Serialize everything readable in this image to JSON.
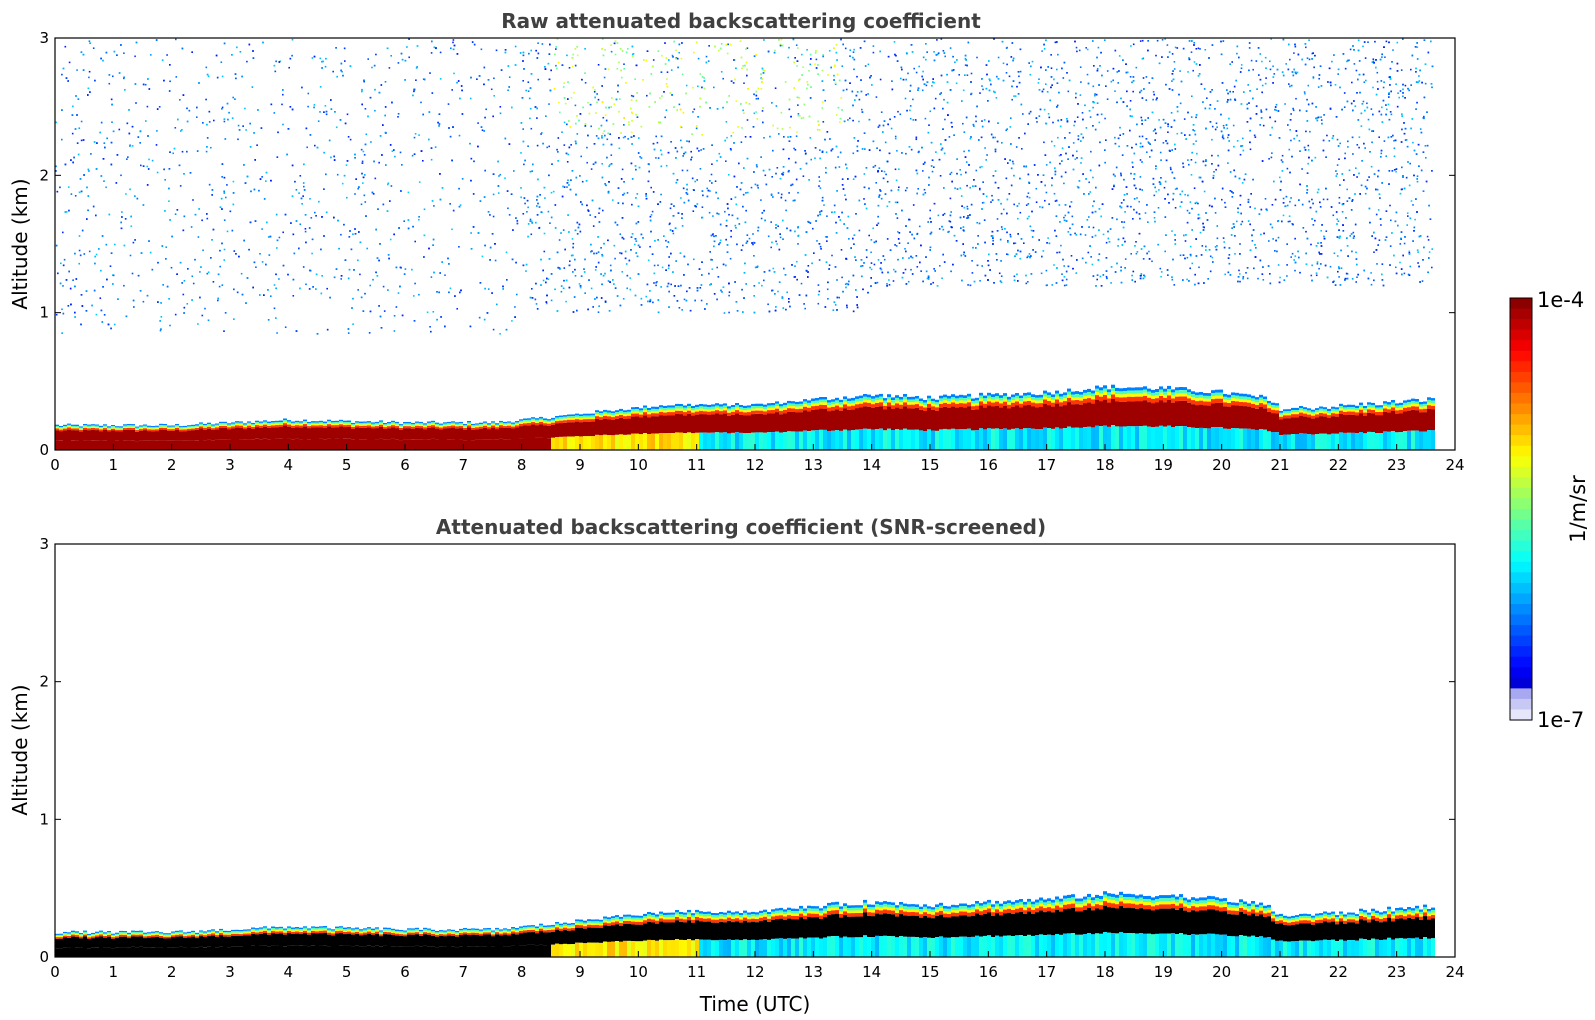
{
  "chart_data": [
    {
      "type": "heatmap",
      "title": "Raw attenuated backscattering coefficient",
      "xlabel": "",
      "ylabel": "Altitude (km)",
      "xlim": [
        0,
        24
      ],
      "ylim": [
        0,
        3
      ],
      "x_ticks": [
        "0",
        "1",
        "2",
        "3",
        "4",
        "5",
        "6",
        "7",
        "8",
        "9",
        "10",
        "11",
        "12",
        "13",
        "14",
        "15",
        "16",
        "17",
        "18",
        "19",
        "20",
        "21",
        "22",
        "23",
        "24"
      ],
      "y_ticks": [
        "0",
        "1",
        "2",
        "3"
      ],
      "data_end_time": 23.6,
      "boundary_layer_top_km": {
        "time": [
          0,
          2,
          4,
          6,
          7.5,
          8.5,
          9.5,
          10.5,
          12,
          13,
          14,
          15,
          16,
          17,
          18,
          19,
          20,
          20.7,
          21,
          22,
          23.6
        ],
        "altitude": [
          0.18,
          0.18,
          0.22,
          0.2,
          0.2,
          0.24,
          0.29,
          0.33,
          0.33,
          0.37,
          0.4,
          0.38,
          0.4,
          0.42,
          0.46,
          0.45,
          0.42,
          0.38,
          0.3,
          0.32,
          0.37
        ]
      },
      "noise": "scattered noise above boundary layer, denser at 9-13 UTC aloft"
    },
    {
      "type": "heatmap",
      "title": "Attenuated backscattering coefficient (SNR-screened)",
      "xlabel": "Time (UTC)",
      "ylabel": "Altitude (km)",
      "xlim": [
        0,
        24
      ],
      "ylim": [
        0,
        3
      ],
      "x_ticks": [
        "0",
        "1",
        "2",
        "3",
        "4",
        "5",
        "6",
        "7",
        "8",
        "9",
        "10",
        "11",
        "12",
        "13",
        "14",
        "15",
        "16",
        "17",
        "18",
        "19",
        "20",
        "21",
        "22",
        "23",
        "24"
      ],
      "y_ticks": [
        "0",
        "1",
        "2",
        "3"
      ],
      "data_end_time": 23.6,
      "noise": "screened out"
    }
  ],
  "colorbar": {
    "label": "1/m/sr",
    "max_label": "1e-4",
    "min_label": "1e-7",
    "scale": "log",
    "colormap": "jet"
  }
}
